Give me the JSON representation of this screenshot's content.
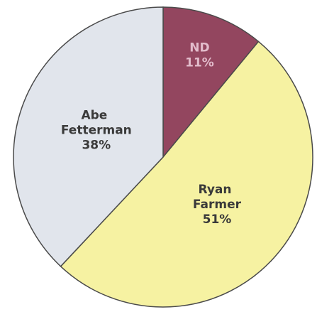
{
  "chart_data": {
    "type": "pie",
    "categories": [
      "ND",
      "Ryan Farmer",
      "Abe Fetterman"
    ],
    "values": [
      11,
      51,
      38
    ],
    "value_labels": [
      "11%",
      "51%",
      "38%"
    ],
    "colors": [
      "#93465f",
      "#f6f2a2",
      "#e1e5ec"
    ],
    "label_colors": [
      "#e2bccb",
      "#3a3a3a",
      "#3a3a3a"
    ]
  }
}
